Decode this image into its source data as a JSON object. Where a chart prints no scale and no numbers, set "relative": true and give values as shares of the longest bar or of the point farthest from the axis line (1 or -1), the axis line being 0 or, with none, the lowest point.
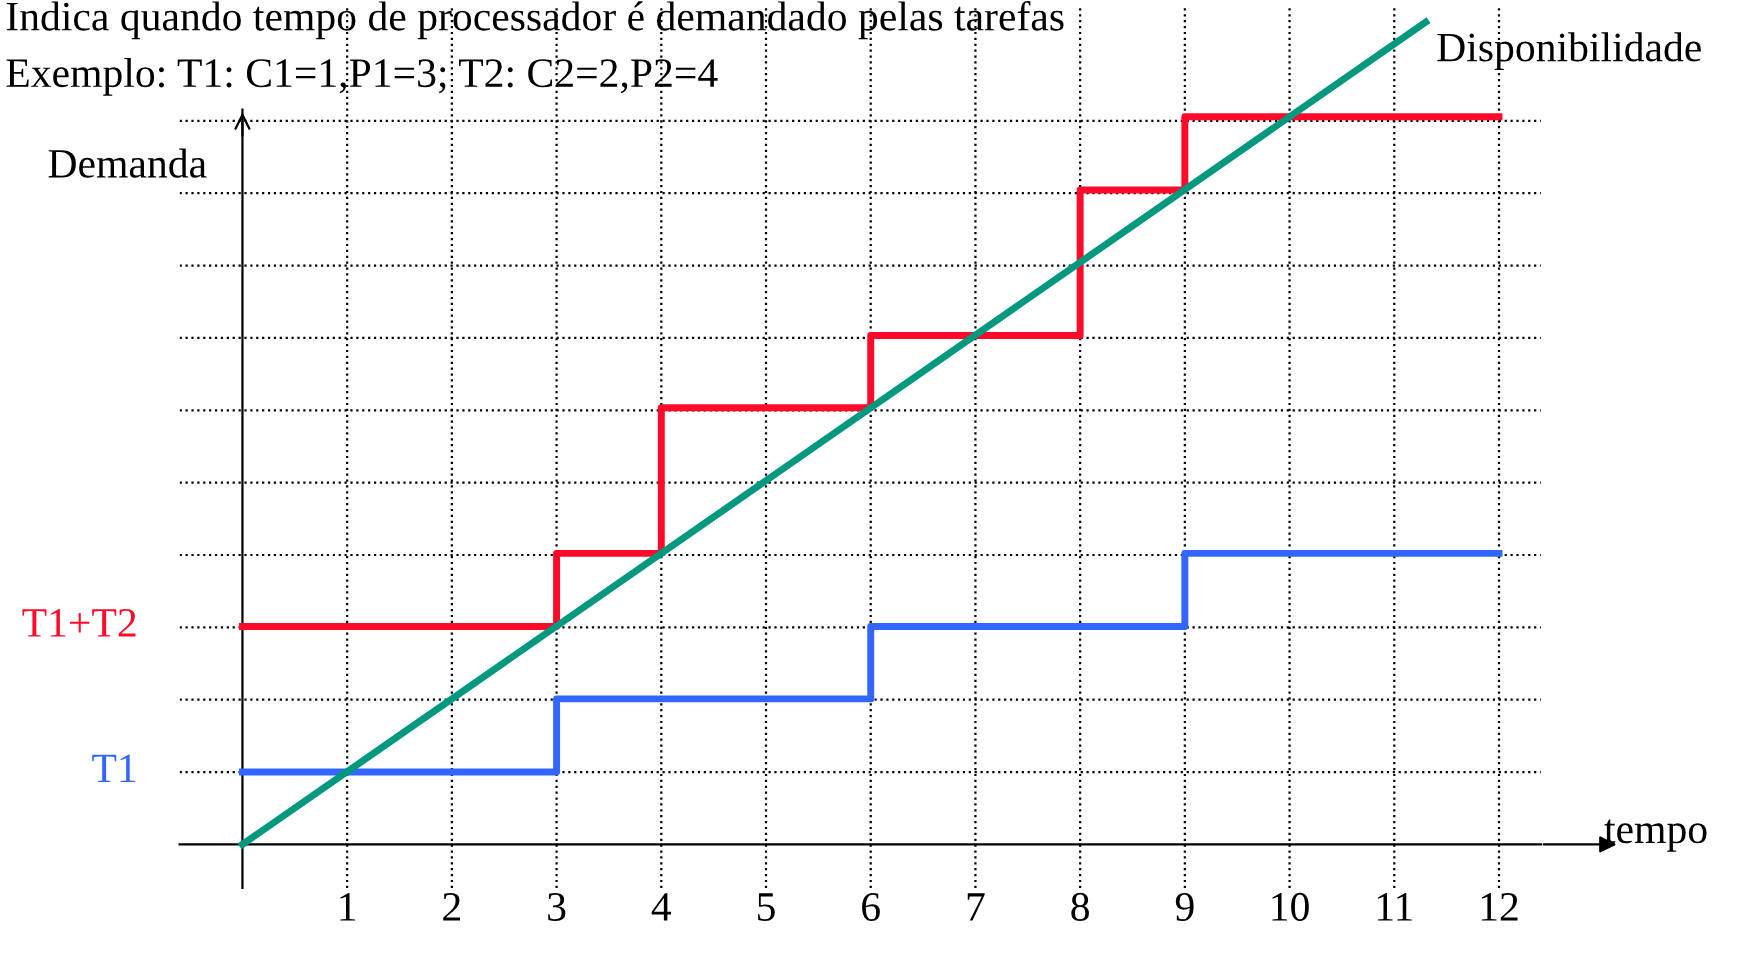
{
  "chart_data": {
    "type": "step",
    "relative": true,
    "title": "Indica quando tempo de processador é demandado pelas tarefas",
    "subtitle": "Exemplo: T1: C1=1,P1=3; T2: C2=2,P2=4",
    "xlabel": "tempo",
    "ylabel": "Demanda",
    "series": [
      {
        "name": "T1+T2",
        "color": "#ff0a2a",
        "x": [
          0,
          3,
          4,
          6,
          8,
          9,
          12
        ],
        "values": [
          0.265,
          0.354,
          0.531,
          0.619,
          0.796,
          0.885,
          0.885
        ]
      },
      {
        "name": "T1",
        "color": "#3366ff",
        "x": [
          0,
          3,
          6,
          9,
          12
        ],
        "values": [
          0.088,
          0.177,
          0.265,
          0.354,
          0.354
        ]
      },
      {
        "name": "Disponibilidade",
        "type": "line",
        "color": "#009980",
        "x": [
          0,
          11.3
        ],
        "values": [
          0,
          1
        ]
      }
    ],
    "xlim": [
      -0.6,
      12.4
    ],
    "xticks": [
      1,
      2,
      3,
      4,
      5,
      6,
      7,
      8,
      9,
      10,
      11,
      12
    ],
    "grid": true,
    "line_style": "solid",
    "marker": "none"
  }
}
